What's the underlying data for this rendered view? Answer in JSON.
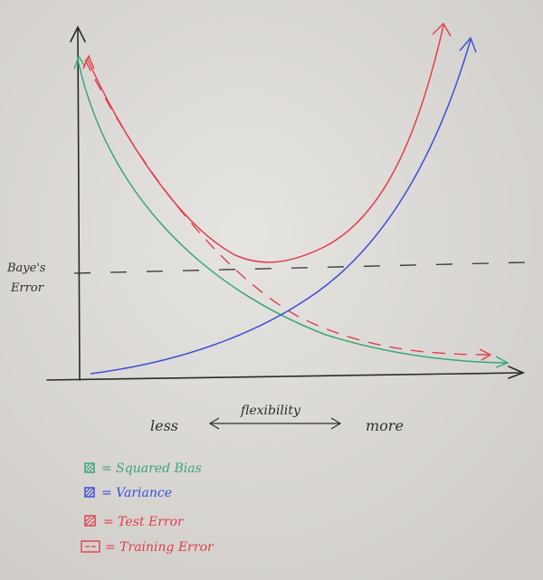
{
  "labels": {
    "bayes_error_line1": "Baye's",
    "bayes_error_line2": "Error",
    "less": "less",
    "flexibility": "flexibility",
    "more": "more"
  },
  "legend": [
    {
      "label": "= Squared Bias",
      "color": "#3aa776"
    },
    {
      "label": "= Variance",
      "color": "#3a4fd8"
    },
    {
      "label": "= Test Error",
      "color": "#e0404a"
    },
    {
      "label": "= Training Error",
      "color": "#e0404a"
    }
  ],
  "colors": {
    "axis": "#2a2a2a",
    "bias": "#3aa776",
    "variance": "#3a4fd8",
    "test": "#e0404a",
    "training": "#e0404a",
    "bayes": "#333333",
    "background": "#dedcda"
  }
}
